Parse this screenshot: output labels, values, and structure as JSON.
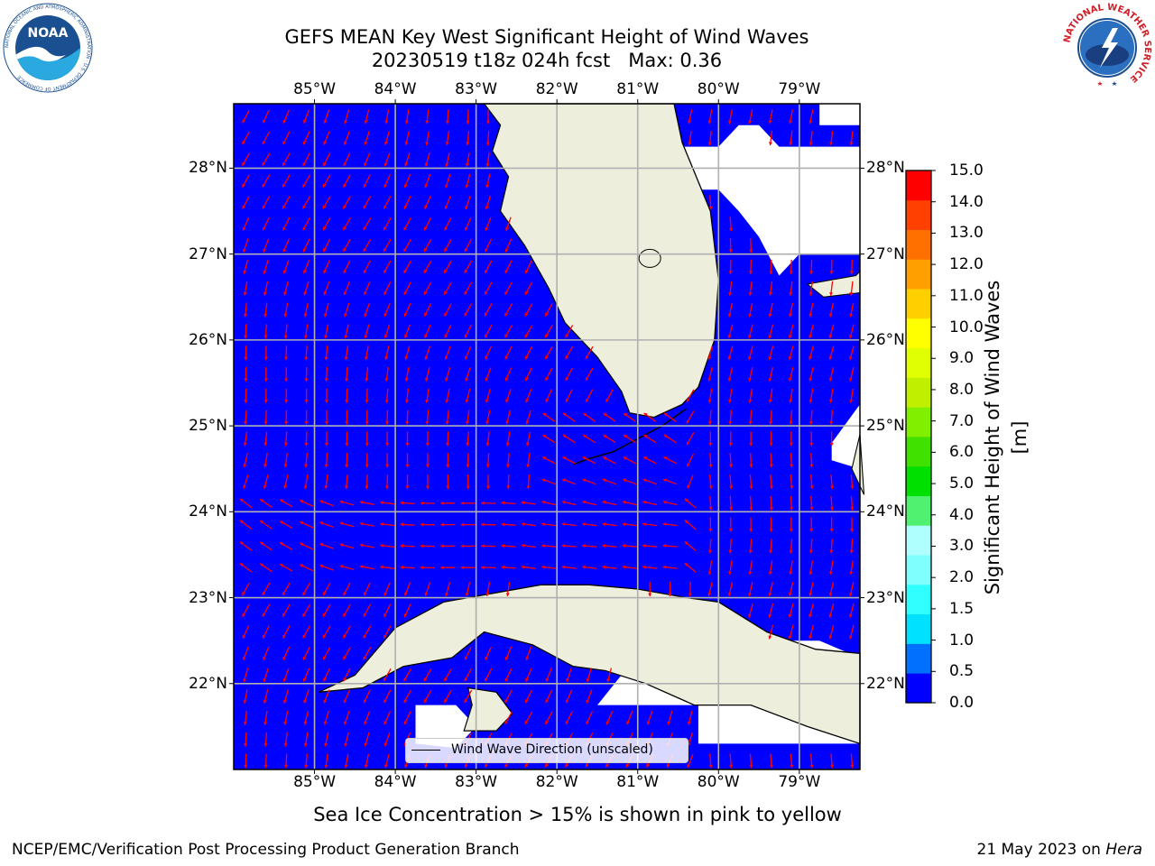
{
  "title": {
    "line1": "GEFS MEAN Key West Significant Height of Wind Waves",
    "line2": "20230519 t18z 024h fcst   Max: 0.36"
  },
  "map": {
    "lon_labels": [
      "85°W",
      "84°W",
      "83°W",
      "82°W",
      "81°W",
      "80°W",
      "79°W"
    ],
    "lat_labels": [
      "28°N",
      "27°N",
      "26°N",
      "25°N",
      "24°N",
      "23°N",
      "22°N"
    ],
    "extent": {
      "lon_min": -86.0,
      "lon_max": -78.25,
      "lat_min": 21.0,
      "lat_max": 28.75
    },
    "field_color": "#0000ff",
    "land_color": "#eeeedd",
    "arrow_color": "#ff0000",
    "grid_color": "#b0b0b0",
    "legend_label": "Wind Wave Direction (unscaled)"
  },
  "colorbar": {
    "label": "Significant Height of Wind Waves [m]",
    "ticks": [
      "0.0",
      "0.5",
      "1.0",
      "1.5",
      "2.0",
      "3.0",
      "4.0",
      "5.0",
      "6.0",
      "7.0",
      "8.0",
      "9.0",
      "10.0",
      "11.0",
      "12.0",
      "13.0",
      "14.0",
      "15.0"
    ],
    "colors": [
      "#0000ff",
      "#0070ff",
      "#00e0ff",
      "#30ffff",
      "#80ffff",
      "#b0ffff",
      "#50f070",
      "#00e000",
      "#40e000",
      "#80f000",
      "#c0f000",
      "#e0ff00",
      "#ffff00",
      "#ffd000",
      "#ffa000",
      "#ff7000",
      "#ff4000",
      "#ff0000"
    ]
  },
  "note": "Sea Ice Concentration > 15% is shown in pink to yellow",
  "footer": {
    "left": "NCEP/EMC/Verification Post Processing Product Generation Branch",
    "right_date": "21 May 2023 on ",
    "right_host": "Hera"
  },
  "logos": {
    "noaa_text": "NOAA",
    "noaa_ring": "NATIONAL OCEANIC AND ATMOSPHERIC ADMINISTRATION · U.S. DEPARTMENT OF COMMERCE",
    "nws_ring": "NATIONAL WEATHER SERVICE"
  }
}
